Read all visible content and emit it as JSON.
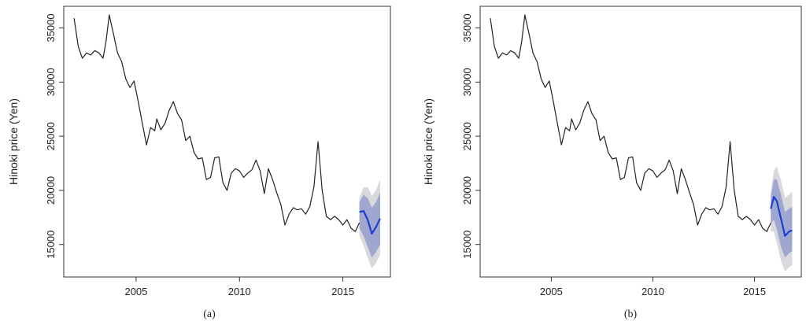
{
  "panels": [
    {
      "caption": "(a)",
      "ylabel": "Hinoki price (Yen)"
    },
    {
      "caption": "(b)",
      "ylabel": "Hinoki price (Yen)"
    }
  ],
  "chart_data": [
    {
      "type": "line",
      "title": "",
      "xlabel": "",
      "ylabel": "Hinoki price (Yen)",
      "xlim": [
        2001.5,
        2017.3
      ],
      "ylim": [
        12000,
        37000
      ],
      "xticks": [
        2005,
        2010,
        2015
      ],
      "yticks": [
        15000,
        20000,
        25000,
        30000,
        35000
      ],
      "grid": false,
      "colors": {
        "history": "#222222",
        "forecast": "#1f3fd0",
        "band80": "#9fa6cf",
        "band95": "#d9d9dd"
      },
      "history": {
        "x": [
          2002.0,
          2002.2,
          2002.4,
          2002.6,
          2002.8,
          2003.0,
          2003.2,
          2003.4,
          2003.55,
          2003.7,
          2003.9,
          2004.1,
          2004.3,
          2004.5,
          2004.7,
          2004.9,
          2005.1,
          2005.3,
          2005.5,
          2005.7,
          2005.9,
          2006.0,
          2006.2,
          2006.4,
          2006.6,
          2006.8,
          2007.0,
          2007.2,
          2007.4,
          2007.6,
          2007.8,
          2008.0,
          2008.2,
          2008.4,
          2008.6,
          2008.8,
          2009.0,
          2009.2,
          2009.4,
          2009.6,
          2009.8,
          2010.0,
          2010.2,
          2010.4,
          2010.6,
          2010.8,
          2011.0,
          2011.2,
          2011.4,
          2011.6,
          2011.8,
          2012.0,
          2012.2,
          2012.4,
          2012.6,
          2012.8,
          2013.0,
          2013.2,
          2013.4,
          2013.6,
          2013.8,
          2014.0,
          2014.2,
          2014.4,
          2014.6,
          2014.8,
          2015.0,
          2015.2,
          2015.4,
          2015.6,
          2015.8
        ],
        "y": [
          35900,
          33300,
          32200,
          32700,
          32500,
          32900,
          32700,
          32200,
          33800,
          36200,
          34500,
          32700,
          31900,
          30300,
          29500,
          30100,
          28200,
          26200,
          24200,
          25800,
          25500,
          26600,
          25600,
          26200,
          27400,
          28200,
          27100,
          26500,
          24600,
          25000,
          23500,
          22900,
          23000,
          21000,
          21200,
          23000,
          23100,
          20700,
          20000,
          21600,
          22000,
          21800,
          21200,
          21600,
          21900,
          22800,
          21800,
          19700,
          22000,
          21000,
          19800,
          18700,
          16800,
          17800,
          18400,
          18200,
          18300,
          17800,
          18500,
          20300,
          24500,
          20000,
          17600,
          17300,
          17600,
          17300,
          16800,
          17300,
          16500,
          16200,
          17000
        ]
      },
      "forecast": {
        "x": [
          2015.8,
          2016.0,
          2016.2,
          2016.4,
          2016.6,
          2016.8
        ],
        "mean": [
          18000,
          18100,
          17300,
          16000,
          16600,
          17400
        ],
        "lo80": [
          16500,
          15800,
          14800,
          13800,
          14300,
          15000
        ],
        "hi80": [
          18900,
          19600,
          19300,
          18400,
          18900,
          19800
        ],
        "lo95": [
          15800,
          14900,
          13800,
          12800,
          13300,
          14000
        ],
        "hi95": [
          19300,
          20300,
          20300,
          19500,
          20000,
          21000
        ]
      }
    },
    {
      "type": "line",
      "title": "",
      "xlabel": "",
      "ylabel": "Hinoki price (Yen)",
      "xlim": [
        2001.5,
        2017.3
      ],
      "ylim": [
        12000,
        37000
      ],
      "xticks": [
        2005,
        2010,
        2015
      ],
      "yticks": [
        15000,
        20000,
        25000,
        30000,
        35000
      ],
      "grid": false,
      "colors": {
        "history": "#222222",
        "forecast": "#1f3fd0",
        "band80": "#9fa6cf",
        "band95": "#d9d9dd"
      },
      "history": {
        "x": [
          2002.0,
          2002.2,
          2002.4,
          2002.6,
          2002.8,
          2003.0,
          2003.2,
          2003.4,
          2003.55,
          2003.7,
          2003.9,
          2004.1,
          2004.3,
          2004.5,
          2004.7,
          2004.9,
          2005.1,
          2005.3,
          2005.5,
          2005.7,
          2005.9,
          2006.0,
          2006.2,
          2006.4,
          2006.6,
          2006.8,
          2007.0,
          2007.2,
          2007.4,
          2007.6,
          2007.8,
          2008.0,
          2008.2,
          2008.4,
          2008.6,
          2008.8,
          2009.0,
          2009.2,
          2009.4,
          2009.6,
          2009.8,
          2010.0,
          2010.2,
          2010.4,
          2010.6,
          2010.8,
          2011.0,
          2011.2,
          2011.4,
          2011.6,
          2011.8,
          2012.0,
          2012.2,
          2012.4,
          2012.6,
          2012.8,
          2013.0,
          2013.2,
          2013.4,
          2013.6,
          2013.8,
          2014.0,
          2014.2,
          2014.4,
          2014.6,
          2014.8,
          2015.0,
          2015.2,
          2015.4,
          2015.6,
          2015.8
        ],
        "y": [
          35900,
          33300,
          32200,
          32700,
          32500,
          32900,
          32700,
          32200,
          33800,
          36200,
          34500,
          32700,
          31900,
          30300,
          29500,
          30100,
          28200,
          26200,
          24200,
          25800,
          25500,
          26600,
          25600,
          26200,
          27400,
          28200,
          27100,
          26500,
          24600,
          25000,
          23500,
          22900,
          23000,
          21000,
          21200,
          23000,
          23100,
          20700,
          20000,
          21600,
          22000,
          21800,
          21200,
          21600,
          21900,
          22800,
          21800,
          19700,
          22000,
          21000,
          19800,
          18700,
          16800,
          17800,
          18400,
          18200,
          18300,
          17800,
          18500,
          20300,
          24500,
          20000,
          17600,
          17300,
          17600,
          17300,
          16800,
          17300,
          16500,
          16200,
          17000
        ]
      },
      "forecast": {
        "x": [
          2015.8,
          2015.95,
          2016.1,
          2016.3,
          2016.5,
          2016.7,
          2016.85
        ],
        "mean": [
          18300,
          19400,
          19000,
          17400,
          15800,
          16200,
          16300
        ],
        "lo80": [
          16900,
          17300,
          16400,
          14800,
          13800,
          14200,
          14400
        ],
        "hi80": [
          19400,
          21000,
          21000,
          19600,
          18000,
          18300,
          18500
        ],
        "lo95": [
          16200,
          16200,
          15100,
          13500,
          12500,
          12900,
          13100
        ],
        "hi95": [
          19900,
          21800,
          22200,
          20900,
          19300,
          19600,
          19900
        ]
      }
    }
  ]
}
